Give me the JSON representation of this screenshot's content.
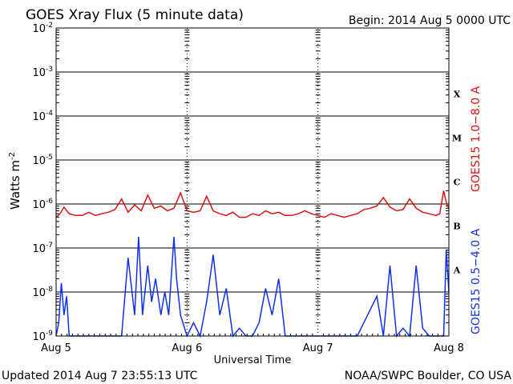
{
  "chart_data": {
    "type": "line",
    "title": "GOES Xray Flux (5 minute data)",
    "begin_label": "Begin:  2014 Aug 5 0000 UTC",
    "xlabel": "Universal Time",
    "ylabel_base": "Watts m",
    "ylabel_exp": "-2",
    "y_scale": "log",
    "ylim": [
      1e-09,
      0.01
    ],
    "xlim_days": [
      0,
      3
    ],
    "grid": true,
    "x_ticks": [
      {
        "pos": 0,
        "label": "Aug 5"
      },
      {
        "pos": 1,
        "label": "Aug 6"
      },
      {
        "pos": 2,
        "label": "Aug 7"
      },
      {
        "pos": 3,
        "label": "Aug 8"
      }
    ],
    "y_ticks": [
      {
        "exp": -2,
        "label": "10",
        "sup": "-2"
      },
      {
        "exp": -3,
        "label": "10",
        "sup": "-3"
      },
      {
        "exp": -4,
        "label": "10",
        "sup": "-4"
      },
      {
        "exp": -5,
        "label": "10",
        "sup": "-5"
      },
      {
        "exp": -6,
        "label": "10",
        "sup": "-6"
      },
      {
        "exp": -7,
        "label": "10",
        "sup": "-7"
      },
      {
        "exp": -8,
        "label": "10",
        "sup": "-8"
      },
      {
        "exp": -9,
        "label": "10",
        "sup": "-9"
      }
    ],
    "flare_classes": [
      {
        "label": "X",
        "exp": -3.5
      },
      {
        "label": "M",
        "exp": -4.5
      },
      {
        "label": "C",
        "exp": -5.5
      },
      {
        "label": "B",
        "exp": -6.5
      },
      {
        "label": "A",
        "exp": -7.5
      }
    ],
    "series": [
      {
        "name": "GOES15 1.0−8.0 A",
        "color": "#e01010",
        "x": [
          0,
          0.03,
          0.06,
          0.1,
          0.15,
          0.2,
          0.25,
          0.3,
          0.35,
          0.4,
          0.45,
          0.5,
          0.55,
          0.6,
          0.65,
          0.7,
          0.75,
          0.8,
          0.85,
          0.9,
          0.95,
          1.0,
          1.05,
          1.1,
          1.15,
          1.2,
          1.25,
          1.3,
          1.35,
          1.4,
          1.45,
          1.5,
          1.55,
          1.6,
          1.65,
          1.7,
          1.75,
          1.8,
          1.85,
          1.9,
          1.95,
          2.0,
          2.05,
          2.1,
          2.15,
          2.2,
          2.25,
          2.3,
          2.35,
          2.4,
          2.45,
          2.5,
          2.55,
          2.6,
          2.65,
          2.7,
          2.75,
          2.8,
          2.85,
          2.9,
          2.93,
          2.96,
          2.98,
          3.0
        ],
        "y": [
          5e-07,
          6e-07,
          8.5e-07,
          6e-07,
          5.5e-07,
          5.5e-07,
          6.5e-07,
          5.5e-07,
          6e-07,
          6.5e-07,
          7.5e-07,
          1.3e-06,
          6.5e-07,
          9.5e-07,
          7e-07,
          1.6e-06,
          8e-07,
          9e-07,
          7e-07,
          8e-07,
          1.8e-06,
          7e-07,
          6.5e-07,
          7e-07,
          1.5e-06,
          7e-07,
          6e-07,
          5.5e-07,
          6.5e-07,
          5e-07,
          5e-07,
          6e-07,
          5.5e-07,
          7e-07,
          6e-07,
          6.5e-07,
          5.5e-07,
          5.5e-07,
          6e-07,
          7e-07,
          6e-07,
          5.5e-07,
          5e-07,
          6e-07,
          5.5e-07,
          5e-07,
          5.5e-07,
          6e-07,
          7.5e-07,
          8e-07,
          9e-07,
          1.4e-06,
          8.5e-07,
          7e-07,
          7.5e-07,
          1.3e-06,
          8e-07,
          6.5e-07,
          6e-07,
          5.5e-07,
          6e-07,
          2e-06,
          1.1e-06,
          8e-07
        ]
      },
      {
        "name": "GOES15 0.5−4.0 A",
        "color": "#1030f0",
        "x": [
          0,
          0.02,
          0.04,
          0.06,
          0.08,
          0.1,
          0.14,
          0.2,
          0.3,
          0.4,
          0.5,
          0.55,
          0.6,
          0.63,
          0.66,
          0.7,
          0.73,
          0.76,
          0.8,
          0.83,
          0.86,
          0.9,
          0.92,
          0.95,
          1.0,
          1.05,
          1.1,
          1.15,
          1.2,
          1.25,
          1.3,
          1.35,
          1.4,
          1.45,
          1.5,
          1.55,
          1.6,
          1.65,
          1.7,
          1.75,
          1.8,
          1.85,
          1.9,
          2.0,
          2.1,
          2.2,
          2.3,
          2.4,
          2.45,
          2.5,
          2.55,
          2.6,
          2.65,
          2.7,
          2.75,
          2.8,
          2.85,
          2.9,
          2.93,
          2.96,
          2.98,
          3.0
        ],
        "y": [
          1e-09,
          2e-09,
          1.6e-08,
          3e-09,
          8e-09,
          1e-09,
          1e-09,
          1e-09,
          1e-09,
          1e-09,
          1e-09,
          6e-08,
          3e-09,
          1.8e-07,
          3e-09,
          4e-08,
          6e-09,
          2e-08,
          3e-09,
          1e-08,
          3e-09,
          1.8e-07,
          2e-08,
          3e-09,
          1e-09,
          2e-09,
          1e-09,
          6e-09,
          7e-08,
          3e-09,
          1.2e-08,
          1e-09,
          1.5e-09,
          1e-09,
          1e-09,
          2e-09,
          1.2e-08,
          3e-09,
          2e-08,
          1e-09,
          1e-09,
          1e-09,
          1e-09,
          1e-09,
          1e-09,
          1e-09,
          1e-09,
          4e-09,
          8e-09,
          1e-09,
          4e-08,
          1e-09,
          1.5e-09,
          1e-09,
          4e-08,
          1.5e-09,
          1e-09,
          1e-09,
          1e-09,
          1e-09,
          9e-08,
          1e-08
        ]
      }
    ]
  },
  "footer": {
    "updated": "Updated 2014 Aug  7 23:55:13 UTC",
    "credit": "NOAA/SWPC Boulder, CO USA"
  }
}
